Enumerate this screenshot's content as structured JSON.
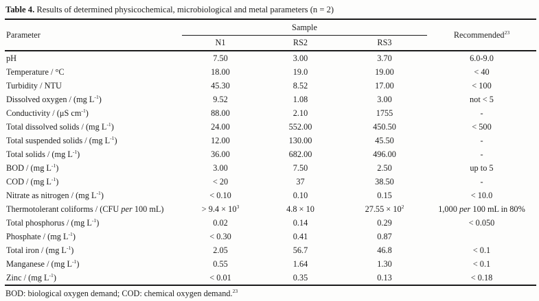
{
  "title": {
    "label": "Table 4.",
    "text": " Results of determined physicochemical, microbiological and metal parameters (n = 2)"
  },
  "table": {
    "header": {
      "parameter": "Parameter",
      "sample_group": "Sample",
      "columns": [
        "N1",
        "RS2",
        "RS3"
      ],
      "recommended": [
        {
          "t": "Recommended"
        },
        {
          "t": "23",
          "sup": true
        }
      ]
    },
    "rows": [
      {
        "param": "pH",
        "n1": "7.50",
        "rs2": "3.00",
        "rs3": "3.70",
        "rec": "6.0-9.0"
      },
      {
        "param": "Temperature / °C",
        "n1": "18.00",
        "rs2": "19.0",
        "rs3": "19.00",
        "rec": "< 40"
      },
      {
        "param": "Turbidity / NTU",
        "n1": "45.30",
        "rs2": "8.52",
        "rs3": "17.00",
        "rec": "< 100"
      },
      {
        "param": [
          {
            "t": "Dissolved oxygen / (mg L"
          },
          {
            "t": "-1",
            "sup": true
          },
          {
            "t": ")"
          }
        ],
        "n1": "9.52",
        "rs2": "1.08",
        "rs3": "3.00",
        "rec": "not < 5"
      },
      {
        "param": [
          {
            "t": "Conductivity / (μS cm"
          },
          {
            "t": "-1",
            "sup": true
          },
          {
            "t": ")"
          }
        ],
        "n1": "88.00",
        "rs2": "2.10",
        "rs3": "1755",
        "rec": "-"
      },
      {
        "param": [
          {
            "t": "Total dissolved solids / (mg L"
          },
          {
            "t": "-1",
            "sup": true
          },
          {
            "t": ")"
          }
        ],
        "n1": "24.00",
        "rs2": "552.00",
        "rs3": "450.50",
        "rec": "< 500"
      },
      {
        "param": [
          {
            "t": "Total suspended solids / (mg L"
          },
          {
            "t": "-1",
            "sup": true
          },
          {
            "t": ")"
          }
        ],
        "n1": "12.00",
        "rs2": "130.00",
        "rs3": "45.50",
        "rec": "-"
      },
      {
        "param": [
          {
            "t": "Total solids / (mg L"
          },
          {
            "t": "-1",
            "sup": true
          },
          {
            "t": ")"
          }
        ],
        "n1": "36.00",
        "rs2": "682.00",
        "rs3": "496.00",
        "rec": "-"
      },
      {
        "param": [
          {
            "t": "BOD / (mg L"
          },
          {
            "t": "-1",
            "sup": true
          },
          {
            "t": ")"
          }
        ],
        "n1": "3.00",
        "rs2": "7.50",
        "rs3": "2.50",
        "rec": "up to 5"
      },
      {
        "param": [
          {
            "t": "COD / (mg L"
          },
          {
            "t": "-1",
            "sup": true
          },
          {
            "t": ")"
          }
        ],
        "n1": "< 20",
        "rs2": "37",
        "rs3": "38.50",
        "rec": "-"
      },
      {
        "param": [
          {
            "t": "Nitrate as nitrogen / (mg L"
          },
          {
            "t": "-1",
            "sup": true
          },
          {
            "t": ")"
          }
        ],
        "n1": "< 0.10",
        "rs2": "0.10",
        "rs3": "0.15",
        "rec": "< 10.0"
      },
      {
        "param": [
          {
            "t": "Thermotolerant coliforms / (CFU "
          },
          {
            "t": "per",
            "i": true
          },
          {
            "t": " 100 mL)"
          }
        ],
        "n1": [
          {
            "t": "> 9.4 × 10"
          },
          {
            "t": "3",
            "sup": true
          }
        ],
        "rs2": "4.8 × 10",
        "rs3": [
          {
            "t": "27.55 × 10"
          },
          {
            "t": "2",
            "sup": true
          }
        ],
        "rec": [
          {
            "t": "1,000 "
          },
          {
            "t": "per",
            "i": true
          },
          {
            "t": " 100 mL in 80%"
          }
        ]
      },
      {
        "param": [
          {
            "t": "Total phosphorus / (mg L"
          },
          {
            "t": "-1",
            "sup": true
          },
          {
            "t": ")"
          }
        ],
        "n1": "0.02",
        "rs2": "0.14",
        "rs3": "0.29",
        "rec": "< 0.050"
      },
      {
        "param": [
          {
            "t": "Phosphate / (mg L"
          },
          {
            "t": "-1",
            "sup": true
          },
          {
            "t": ")"
          }
        ],
        "n1": "< 0.30",
        "rs2": "0.41",
        "rs3": "0.87",
        "rec": ""
      },
      {
        "param": [
          {
            "t": "Total iron / (mg L"
          },
          {
            "t": "-1",
            "sup": true
          },
          {
            "t": ")"
          }
        ],
        "n1": "2.05",
        "rs2": "56.7",
        "rs3": "46.8",
        "rec": "< 0.1"
      },
      {
        "param": [
          {
            "t": "Manganese / (mg L"
          },
          {
            "t": "-1",
            "sup": true
          },
          {
            "t": ")"
          }
        ],
        "n1": "0.55",
        "rs2": "1.64",
        "rs3": "1.30",
        "rec": "< 0.1"
      },
      {
        "param": [
          {
            "t": "Zinc / (mg L"
          },
          {
            "t": "-1",
            "sup": true
          },
          {
            "t": ")"
          }
        ],
        "n1": "< 0.01",
        "rs2": "0.35",
        "rs3": "0.13",
        "rec": "< 0.18"
      }
    ],
    "footnote": [
      {
        "t": "BOD: biological oxygen demand; COD: chemical oxygen demand."
      },
      {
        "t": "23",
        "sup": true
      }
    ]
  }
}
